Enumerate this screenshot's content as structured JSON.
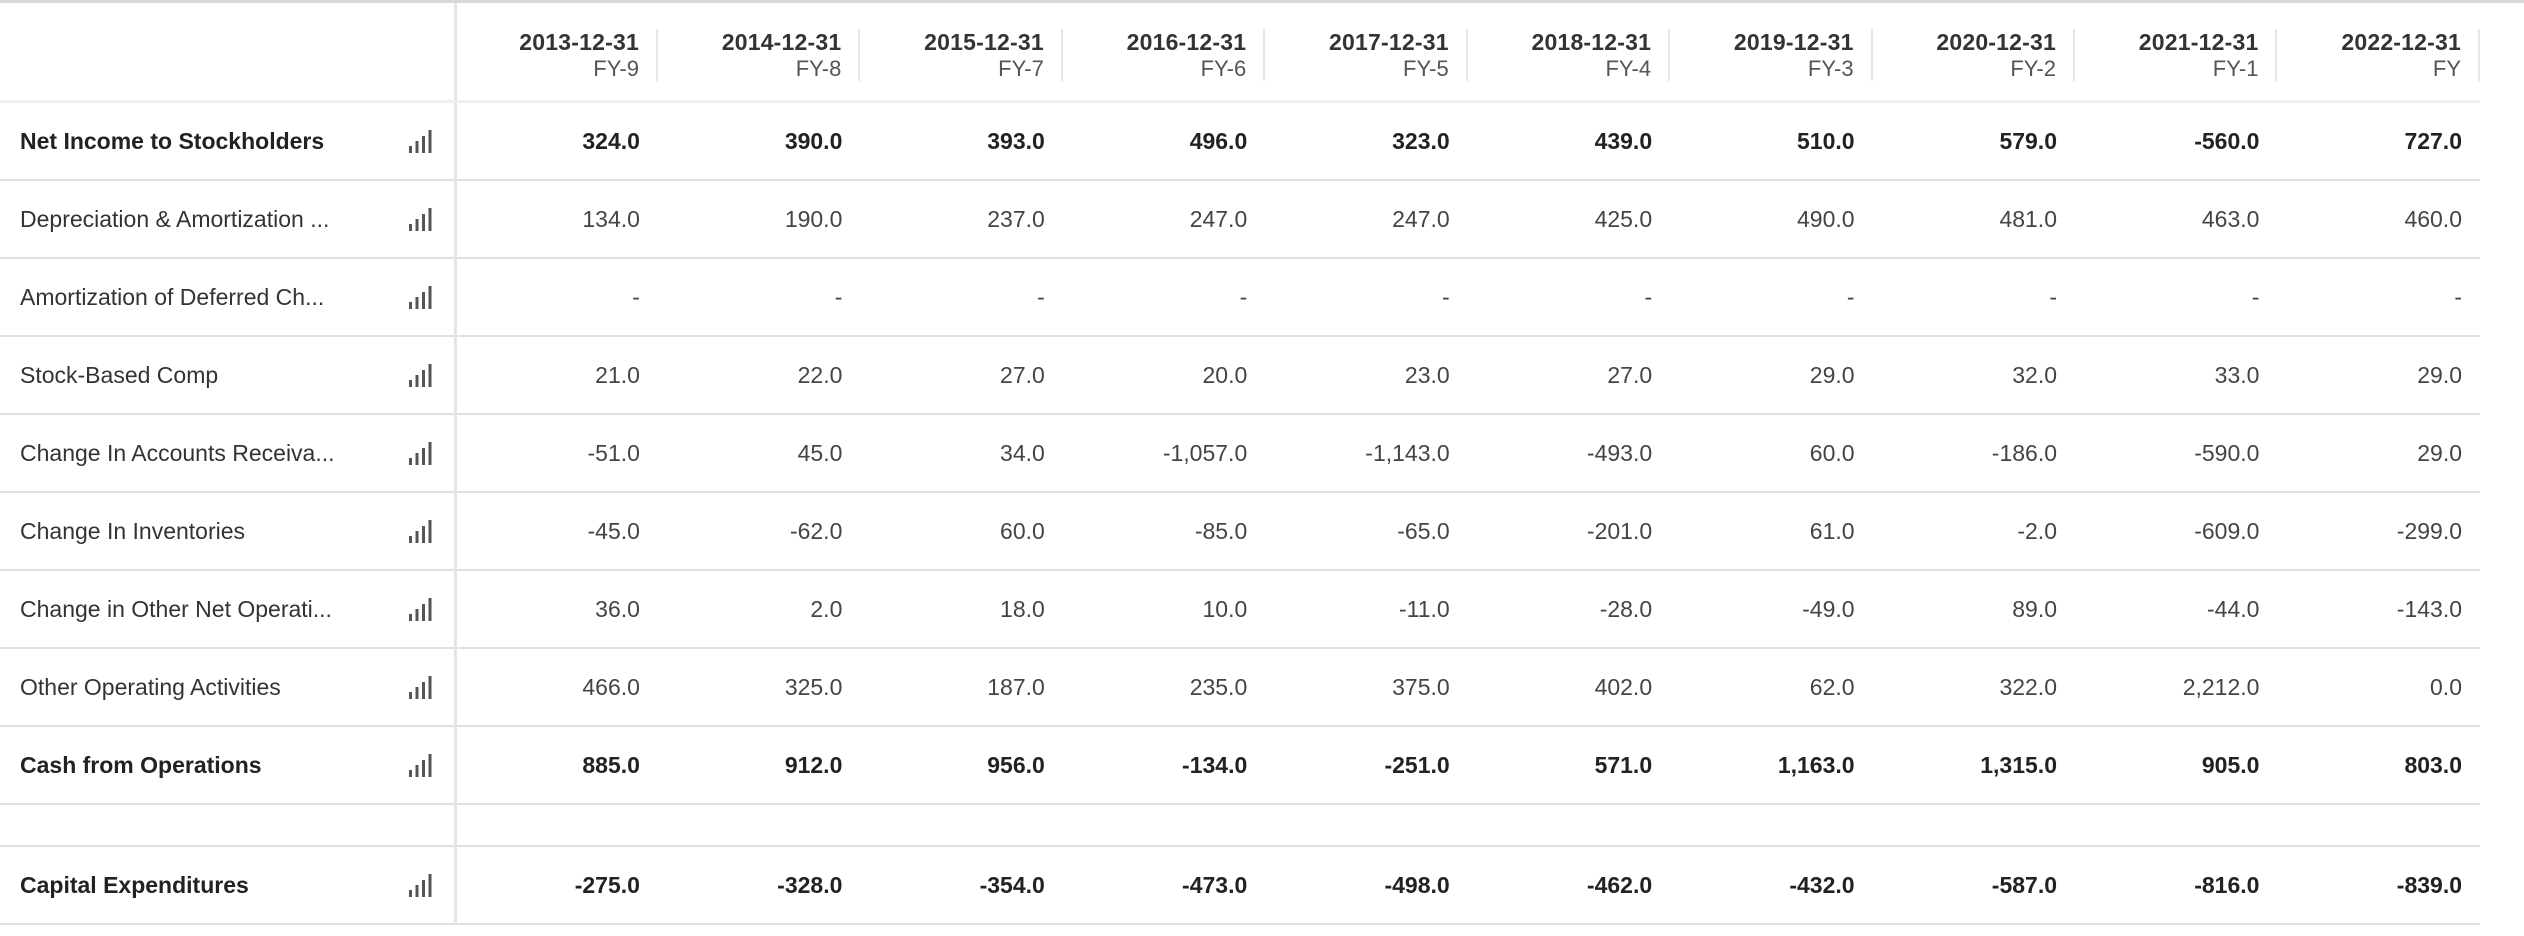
{
  "columns": [
    {
      "date": "2013-12-31",
      "fy": "FY-9"
    },
    {
      "date": "2014-12-31",
      "fy": "FY-8"
    },
    {
      "date": "2015-12-31",
      "fy": "FY-7"
    },
    {
      "date": "2016-12-31",
      "fy": "FY-6"
    },
    {
      "date": "2017-12-31",
      "fy": "FY-5"
    },
    {
      "date": "2018-12-31",
      "fy": "FY-4"
    },
    {
      "date": "2019-12-31",
      "fy": "FY-3"
    },
    {
      "date": "2020-12-31",
      "fy": "FY-2"
    },
    {
      "date": "2021-12-31",
      "fy": "FY-1"
    },
    {
      "date": "2022-12-31",
      "fy": "FY"
    }
  ],
  "rows": [
    {
      "label": "Net Income to Stockholders",
      "bold": true,
      "icon": "bar-chart-icon",
      "values": [
        "324.0",
        "390.0",
        "393.0",
        "496.0",
        "323.0",
        "439.0",
        "510.0",
        "579.0",
        "-560.0",
        "727.0"
      ]
    },
    {
      "label": "Depreciation & Amortization ...",
      "bold": false,
      "icon": "bar-chart-icon",
      "values": [
        "134.0",
        "190.0",
        "237.0",
        "247.0",
        "247.0",
        "425.0",
        "490.0",
        "481.0",
        "463.0",
        "460.0"
      ]
    },
    {
      "label": "Amortization of Deferred Ch...",
      "bold": false,
      "icon": "bar-chart-icon",
      "values": [
        "-",
        "-",
        "-",
        "-",
        "-",
        "-",
        "-",
        "-",
        "-",
        "-"
      ]
    },
    {
      "label": "Stock-Based Comp",
      "bold": false,
      "icon": "bar-chart-icon",
      "values": [
        "21.0",
        "22.0",
        "27.0",
        "20.0",
        "23.0",
        "27.0",
        "29.0",
        "32.0",
        "33.0",
        "29.0"
      ]
    },
    {
      "label": "Change In Accounts Receiva...",
      "bold": false,
      "icon": "bar-chart-icon",
      "values": [
        "-51.0",
        "45.0",
        "34.0",
        "-1,057.0",
        "-1,143.0",
        "-493.0",
        "60.0",
        "-186.0",
        "-590.0",
        "29.0"
      ]
    },
    {
      "label": "Change In Inventories",
      "bold": false,
      "icon": "bar-chart-icon",
      "values": [
        "-45.0",
        "-62.0",
        "60.0",
        "-85.0",
        "-65.0",
        "-201.0",
        "61.0",
        "-2.0",
        "-609.0",
        "-299.0"
      ]
    },
    {
      "label": "Change in Other Net Operati...",
      "bold": false,
      "icon": "bar-chart-icon",
      "values": [
        "36.0",
        "2.0",
        "18.0",
        "10.0",
        "-11.0",
        "-28.0",
        "-49.0",
        "89.0",
        "-44.0",
        "-143.0"
      ]
    },
    {
      "label": "Other Operating Activities",
      "bold": false,
      "icon": "bar-chart-icon",
      "values": [
        "466.0",
        "325.0",
        "187.0",
        "235.0",
        "375.0",
        "402.0",
        "62.0",
        "322.0",
        "2,212.0",
        "0.0"
      ]
    },
    {
      "label": "Cash from Operations",
      "bold": true,
      "icon": "bar-chart-icon",
      "values": [
        "885.0",
        "912.0",
        "956.0",
        "-134.0",
        "-251.0",
        "571.0",
        "1,163.0",
        "1,315.0",
        "905.0",
        "803.0"
      ]
    },
    {
      "spacer": true
    },
    {
      "label": "Capital Expenditures",
      "bold": true,
      "icon": "bar-chart-icon",
      "values": [
        "-275.0",
        "-328.0",
        "-354.0",
        "-473.0",
        "-498.0",
        "-462.0",
        "-432.0",
        "-587.0",
        "-816.0",
        "-839.0"
      ]
    }
  ],
  "colors": {
    "text": "#333333",
    "icon": "#555555",
    "border": "#e0e0e0"
  }
}
